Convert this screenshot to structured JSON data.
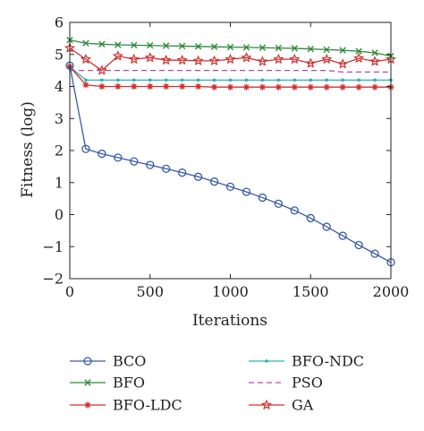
{
  "chart_data": {
    "type": "line",
    "title": "",
    "xlabel": "Iterations",
    "ylabel": "Fitness (log)",
    "xlim": [
      0,
      2000
    ],
    "ylim": [
      -2,
      6
    ],
    "xticks": [
      0,
      500,
      1000,
      1500,
      2000
    ],
    "yticks": [
      -2,
      -1,
      0,
      1,
      2,
      3,
      4,
      5,
      6
    ],
    "grid": false,
    "legend_position": "bottom",
    "series": [
      {
        "name": "BCO",
        "color": "#3a5aa8",
        "marker": "circle",
        "x": [
          0,
          100,
          200,
          300,
          400,
          500,
          600,
          700,
          800,
          900,
          1000,
          1100,
          1200,
          1300,
          1400,
          1500,
          1600,
          1700,
          1800,
          1900,
          2000
        ],
        "y": [
          4.65,
          2.05,
          1.9,
          1.78,
          1.66,
          1.55,
          1.43,
          1.31,
          1.18,
          1.03,
          0.87,
          0.71,
          0.53,
          0.34,
          0.13,
          -0.11,
          -0.38,
          -0.66,
          -0.95,
          -1.22,
          -1.49
        ]
      },
      {
        "name": "BFO",
        "color": "#2e8b3a",
        "marker": "x",
        "x": [
          0,
          100,
          200,
          300,
          400,
          500,
          600,
          700,
          800,
          900,
          1000,
          1100,
          1200,
          1300,
          1400,
          1500,
          1600,
          1700,
          1800,
          1900,
          2000
        ],
        "y": [
          5.45,
          5.35,
          5.32,
          5.3,
          5.29,
          5.28,
          5.27,
          5.26,
          5.25,
          5.24,
          5.23,
          5.22,
          5.21,
          5.2,
          5.19,
          5.17,
          5.15,
          5.13,
          5.1,
          5.05,
          4.95
        ]
      },
      {
        "name": "BFO-LDC",
        "color": "#d03030",
        "marker": "asterisk",
        "x": [
          0,
          100,
          200,
          300,
          400,
          500,
          600,
          700,
          800,
          900,
          1000,
          1100,
          1200,
          1300,
          1400,
          1500,
          1600,
          1700,
          1800,
          1900,
          2000
        ],
        "y": [
          4.62,
          4.05,
          4.0,
          4.0,
          4.0,
          4.0,
          4.0,
          4.0,
          4.0,
          3.98,
          3.98,
          3.98,
          3.98,
          3.98,
          3.98,
          3.98,
          3.98,
          3.98,
          3.98,
          3.98,
          3.98
        ]
      },
      {
        "name": "BFO-NDC",
        "color": "#2bb3b3",
        "marker": "dot",
        "x": [
          0,
          100,
          200,
          300,
          400,
          500,
          600,
          700,
          800,
          900,
          1000,
          1100,
          1200,
          1300,
          1400,
          1500,
          1600,
          1700,
          1800,
          1900,
          2000
        ],
        "y": [
          4.62,
          4.2,
          4.2,
          4.2,
          4.2,
          4.2,
          4.2,
          4.2,
          4.2,
          4.2,
          4.2,
          4.2,
          4.2,
          4.2,
          4.2,
          4.2,
          4.2,
          4.2,
          4.2,
          4.2,
          4.2
        ]
      },
      {
        "name": "PSO",
        "color": "#b04aa6",
        "marker": "none",
        "dashed": true,
        "x": [
          0,
          100,
          1600,
          1700,
          2000
        ],
        "y": [
          4.5,
          4.5,
          4.5,
          4.45,
          4.45
        ]
      },
      {
        "name": "GA",
        "color": "#d03030",
        "marker": "star",
        "x": [
          0,
          100,
          200,
          300,
          400,
          500,
          600,
          700,
          800,
          900,
          1000,
          1100,
          1200,
          1300,
          1400,
          1500,
          1600,
          1700,
          1800,
          1900,
          2000
        ],
        "y": [
          5.2,
          4.85,
          4.5,
          4.95,
          4.85,
          4.9,
          4.82,
          4.82,
          4.8,
          4.8,
          4.85,
          4.9,
          4.78,
          4.85,
          4.85,
          4.72,
          4.85,
          4.7,
          4.88,
          4.78,
          4.85
        ]
      }
    ]
  }
}
